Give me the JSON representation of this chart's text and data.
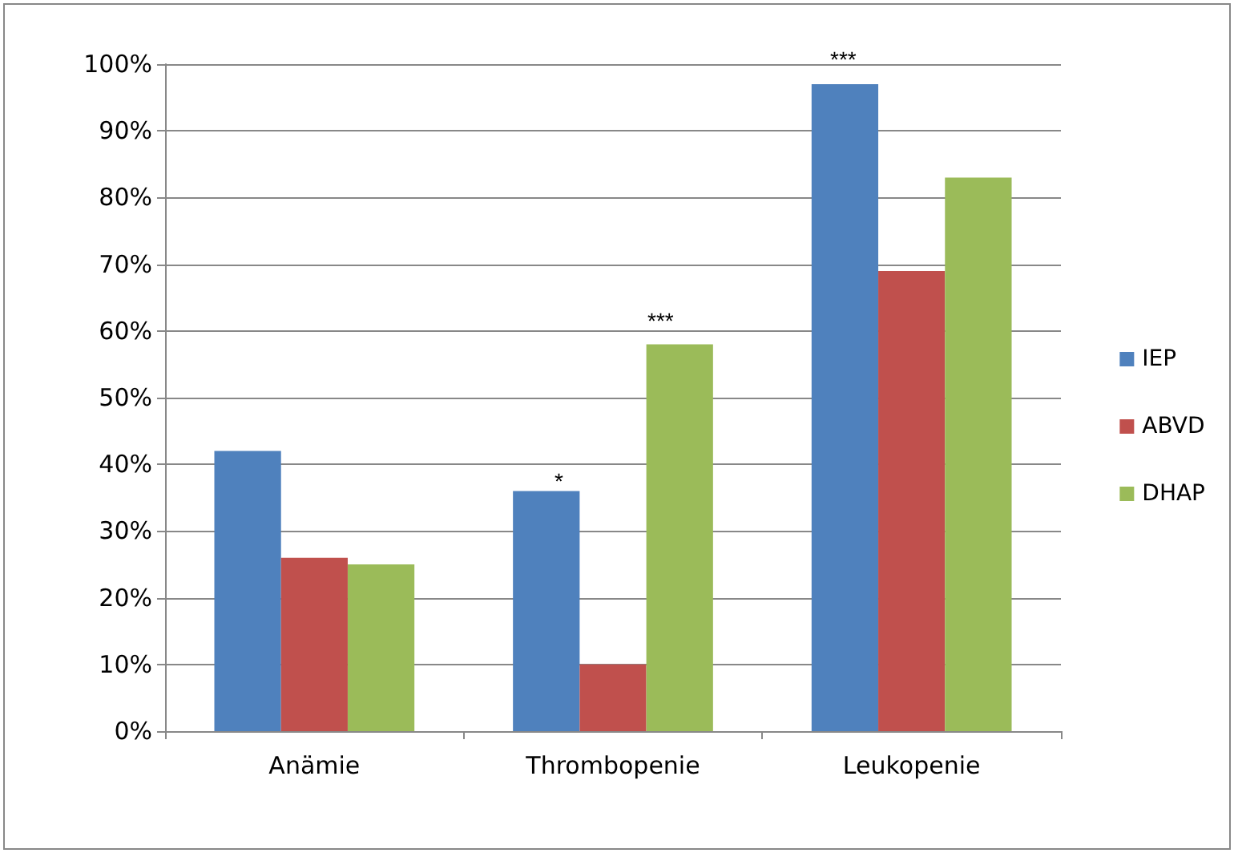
{
  "chart_data": {
    "type": "bar",
    "categories": [
      "Anämie",
      "Thrombopenie",
      "Leukopenie"
    ],
    "series": [
      {
        "name": "IEP",
        "color": "#4f81bd",
        "values": [
          42,
          36,
          97
        ]
      },
      {
        "name": "ABVD",
        "color": "#c0504d",
        "values": [
          26,
          10,
          69
        ]
      },
      {
        "name": "DHAP",
        "color": "#9bbb59",
        "values": [
          25,
          58,
          83
        ]
      }
    ],
    "ylim": [
      0,
      100
    ],
    "yticks": [
      {
        "value": 0,
        "label": "0%"
      },
      {
        "value": 10,
        "label": "10%"
      },
      {
        "value": 20,
        "label": "20%"
      },
      {
        "value": 30,
        "label": "30%"
      },
      {
        "value": 40,
        "label": "40%"
      },
      {
        "value": 50,
        "label": "50%"
      },
      {
        "value": 60,
        "label": "60%"
      },
      {
        "value": 70,
        "label": "70%"
      },
      {
        "value": 80,
        "label": "80%"
      },
      {
        "value": 90,
        "label": "90%"
      },
      {
        "value": 100,
        "label": "100%"
      }
    ],
    "annotations": [
      "*",
      "***",
      "***"
    ],
    "grid": "y",
    "legend": "right"
  }
}
